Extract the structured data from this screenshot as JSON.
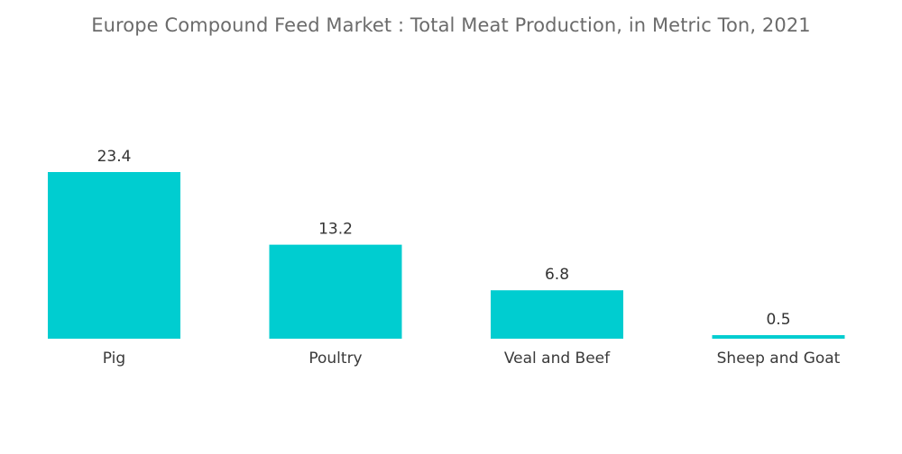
{
  "chart_data": {
    "type": "bar",
    "title": "Europe Compound Feed Market : Total Meat Production, in Metric Ton, 2021",
    "categories": [
      "Pig",
      "Poultry",
      "Veal and Beef",
      "Sheep and Goat"
    ],
    "values": [
      23.4,
      13.2,
      6.8,
      0.5
    ],
    "value_labels": [
      "23.4",
      "13.2",
      "6.8",
      "0.5"
    ],
    "xlabel": "",
    "ylabel": "",
    "ylim": [
      0,
      23.4
    ],
    "grid": false,
    "legend": "none",
    "bar_color": "#00cdd0"
  }
}
